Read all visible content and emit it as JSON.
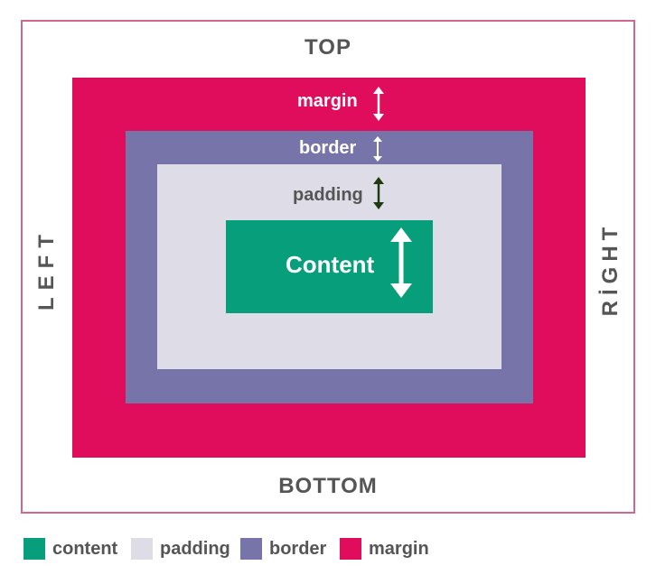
{
  "labels": {
    "top": "TOP",
    "bottom": "BOTTOM",
    "left": "LEFT",
    "right": "RİGHT"
  },
  "boxes": {
    "margin": {
      "label": "margin",
      "color": "#df0d5c"
    },
    "border": {
      "label": "border",
      "color": "#7674a8"
    },
    "padding": {
      "label": "padding",
      "color": "#dedde7"
    },
    "content": {
      "label": "Content",
      "color": "#079e7c"
    }
  },
  "arrows": {
    "margin": "double-arrow-icon",
    "border": "double-arrow-icon",
    "padding": "double-arrow-icon",
    "content": "double-arrow-icon"
  },
  "legend": [
    {
      "label": "content",
      "color": "#079e7c"
    },
    {
      "label": "padding",
      "color": "#dedde7"
    },
    {
      "label": "border",
      "color": "#7674a8"
    },
    {
      "label": "margin",
      "color": "#df0d5c"
    }
  ],
  "colors": {
    "frame": "#d0678f",
    "text": "#555555",
    "padding_arrow": "#1d3a12"
  }
}
